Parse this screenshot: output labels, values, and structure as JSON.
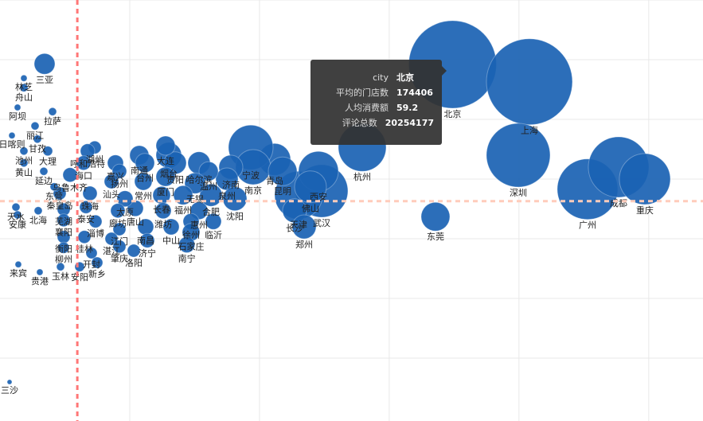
{
  "chart_data": {
    "type": "scatter",
    "tooltip_fields": [
      "city",
      "平均的门店数",
      "人均消费额",
      "评论总数"
    ],
    "labels": [
      "北京",
      "上海",
      "深圳",
      "广州",
      "成都",
      "重庆",
      "东莞",
      "杭州",
      "武汉",
      "天津",
      "西安",
      "佛山",
      "长沙",
      "郑州",
      "青岛",
      "宁波",
      "南京",
      "昆明",
      "济南",
      "泉州",
      "沈阳",
      "哈尔滨",
      "温州",
      "合肥",
      "无锡",
      "福州",
      "惠州",
      "临沂",
      "徐州",
      "石家庄",
      "南宁",
      "烟台",
      "贵阳",
      "大连",
      "厦门",
      "长春",
      "潍坊",
      "中山",
      "南通",
      "台州",
      "常州",
      "唐山",
      "南昌",
      "济宁",
      "洛阳",
      "太原",
      "廊坊",
      "嘉兴",
      "扬州",
      "汕头",
      "江门",
      "湛江",
      "肇庆",
      "淄博",
      "湖州",
      "呼和浩特",
      "海口",
      "乌鲁木齐",
      "珠海",
      "泰安",
      "秦皇岛",
      "芜湖",
      "襄阳",
      "衡阳",
      "桂林",
      "柳州",
      "开封",
      "新乡",
      "三亚",
      "林芝",
      "舟山",
      "拉萨",
      "阿坝",
      "丽江",
      "日喀则",
      "甘孜",
      "池州",
      "大理",
      "黄山",
      "延边",
      "东营",
      "天水",
      "北海",
      "安康",
      "来宾",
      "贵港",
      "玉林",
      "安阳",
      "三沙"
    ],
    "x": [
      174406,
      204022,
      199727,
      226418,
      238384,
      248508,
      167820,
      139594,
      123947,
      115050,
      122720,
      119652,
      113516,
      117198,
      105846,
      96642,
      97562,
      108914,
      88972,
      87438,
      90506,
      76700,
      80382,
      81302,
      75166,
      70564,
      76700,
      82222,
      73632,
      73632,
      72000,
      65042,
      67496,
      63814,
      63814,
      62280,
      62894,
      65962,
      53690,
      55838,
      55224,
      52156,
      56144,
      56758,
      51542,
      48168,
      45406,
      44486,
      46020,
      42952,
      46020,
      42952,
      46020,
      36816,
      36509,
      33748,
      32214,
      26998,
      34668,
      33134,
      23010,
      24544,
      24544,
      24544,
      32521,
      24544,
      35282,
      37430,
      17181,
      9204,
      9204,
      20249,
      6750,
      13499,
      4602,
      14420,
      9204,
      18408,
      9204,
      16874,
      20862,
      6136,
      14726,
      6750,
      7056,
      15340,
      23317,
      30680,
      3682
    ],
    "values": [
      59.2,
      56.3,
      44.0,
      38.3,
      42.0,
      40.0,
      33.7,
      45.3,
      38.0,
      37.3,
      41.3,
      38.7,
      34.7,
      32.0,
      43.3,
      45.3,
      42.0,
      41.3,
      42.0,
      40.0,
      36.7,
      42.7,
      41.3,
      37.3,
      39.3,
      37.3,
      34.7,
      32.9,
      32.9,
      31.1,
      29.0,
      44.0,
      42.7,
      45.6,
      40.4,
      37.3,
      34.7,
      32.0,
      44.0,
      42.7,
      39.6,
      35.1,
      32.0,
      29.7,
      28.0,
      36.7,
      34.7,
      42.7,
      41.3,
      39.6,
      31.6,
      30.0,
      28.7,
      32.9,
      45.3,
      44.7,
      42.7,
      40.7,
      37.6,
      35.3,
      37.6,
      34.9,
      33.1,
      30.3,
      30.3,
      28.5,
      27.6,
      26.0,
      59.3,
      56.9,
      55.3,
      51.3,
      52.0,
      48.9,
      47.3,
      46.7,
      44.7,
      44.7,
      42.7,
      41.3,
      38.7,
      35.3,
      34.7,
      34.0,
      25.7,
      24.4,
      25.3,
      25.3,
      6.0
    ],
    "sizes": [
      20254177,
      19510000,
      10706000,
      9660000,
      9660000,
      6854000,
      2168000,
      6022000,
      7285000,
      6022000,
      4182000,
      2676000,
      1506000,
      1506000,
      2676000,
      5244000,
      3239000,
      2168000,
      1506000,
      1311000,
      1506000,
      1311000,
      964000,
      1311000,
      1131000,
      964000,
      810000,
      669000,
      669000,
      810000,
      669000,
      1713000,
      1311000,
      964000,
      964000,
      810000,
      669000,
      669000,
      964000,
      964000,
      810000,
      669000,
      669000,
      542000,
      428000,
      669000,
      542000,
      669000,
      542000,
      542000,
      428000,
      428000,
      428000,
      428000,
      428000,
      542000,
      542000,
      542000,
      542000,
      428000,
      428000,
      428000,
      428000,
      428000,
      428000,
      330000,
      330000,
      330000,
      1131000,
      107000,
      167000,
      167000,
      107000,
      167000,
      107000,
      167000,
      167000,
      241000,
      167000,
      167000,
      167000,
      167000,
      167000,
      167000,
      107000,
      107000,
      167000,
      241000,
      60000
    ],
    "color": "#1a62b3",
    "xlim": [
      0,
      270000
    ],
    "ylim": [
      0,
      70
    ],
    "grid_x": [
      50000,
      100000,
      150000,
      200000,
      250000
    ],
    "grid_y": [
      10,
      20,
      30,
      40,
      50,
      60,
      70
    ],
    "mark_lines": {
      "x": 29800,
      "y": 36.3,
      "x_color": "#f77",
      "y_color": "#fcb"
    }
  }
}
